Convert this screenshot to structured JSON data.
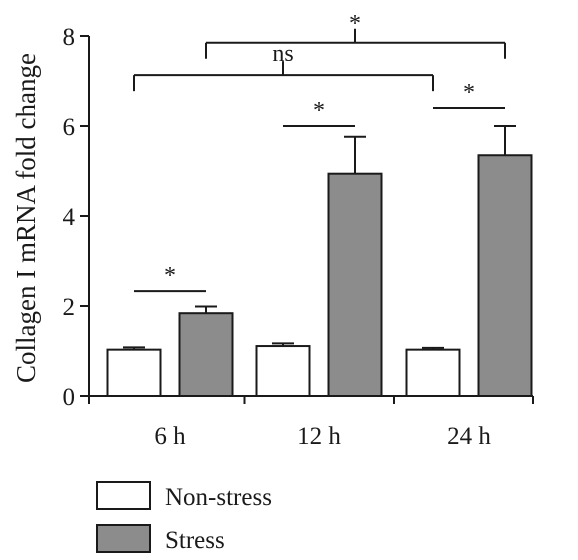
{
  "chart_data": {
    "type": "bar",
    "title": "",
    "xlabel": "",
    "ylabel": "Collagen I mRNA fold change",
    "ylim": [
      0,
      8
    ],
    "yticks": [
      0,
      2,
      4,
      6,
      8
    ],
    "grid": false,
    "legend_position": "bottom-left",
    "categories": [
      "6 h",
      "12 h",
      "24 h"
    ],
    "series": [
      {
        "name": "Non-stress",
        "color": "#ffffff",
        "values": [
          1.03,
          1.11,
          1.03
        ],
        "errors": [
          0.05,
          0.06,
          0.04
        ]
      },
      {
        "name": "Stress",
        "color": "#8c8c8c",
        "values": [
          1.84,
          4.94,
          5.35
        ],
        "errors": [
          0.15,
          0.82,
          0.65
        ]
      }
    ],
    "significance": [
      {
        "label": "*",
        "from_category": 0,
        "from_series": 0,
        "to_category": 0,
        "to_series": 1,
        "y": 2.33,
        "type": "line"
      },
      {
        "label": "*",
        "from_category": 1,
        "from_series": 0,
        "to_category": 1,
        "to_series": 1,
        "y": 6.0,
        "type": "line"
      },
      {
        "label": "*",
        "from_category": 2,
        "from_series": 0,
        "to_category": 2,
        "to_series": 1,
        "y": 6.4,
        "type": "line"
      },
      {
        "label": "ns",
        "from_category": 0,
        "from_series": 0,
        "to_category": 2,
        "to_series": 0,
        "via_category": 1,
        "via_series": 0,
        "y": 7.13,
        "type": "bracket"
      },
      {
        "label": "*",
        "from_category": 0,
        "from_series": 1,
        "to_category": 2,
        "to_series": 1,
        "via_category": 1,
        "via_series": 1,
        "y": 7.85,
        "type": "bracket"
      }
    ]
  }
}
